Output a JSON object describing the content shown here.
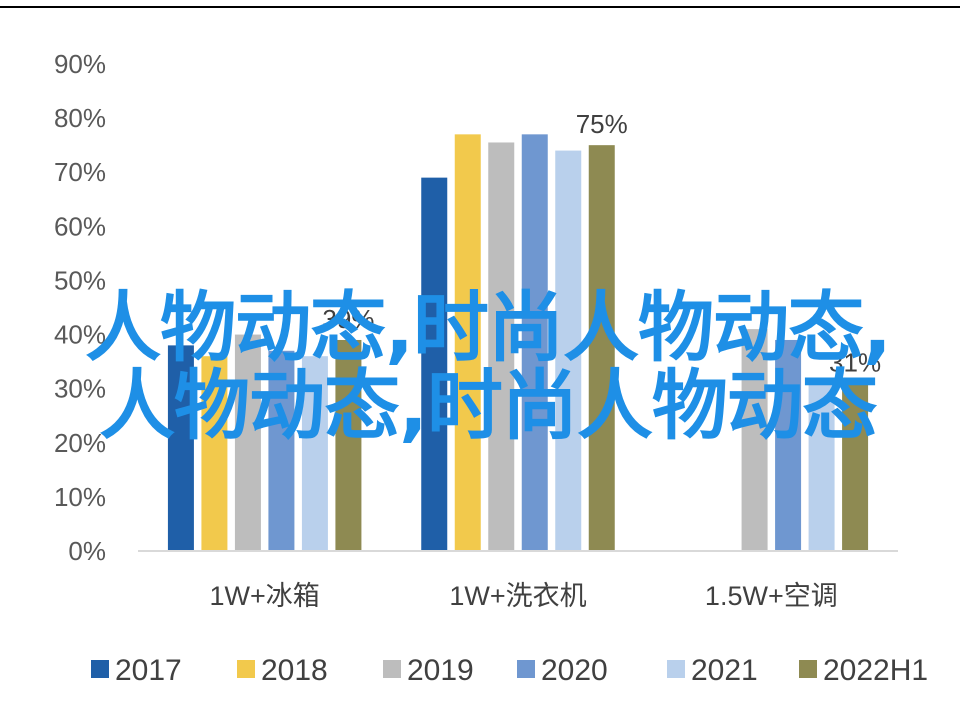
{
  "colors": {
    "top_rule": "#000000",
    "axis_line": "#d9d9d9",
    "watermark": "#1e8fe6"
  },
  "watermark": {
    "line1": "人物动态,时尚人物动态,",
    "line2": "人物动态,时尚人物动态"
  },
  "chart_data": {
    "type": "bar",
    "title": "",
    "xlabel": "",
    "ylabel": "",
    "ylim": [
      0,
      0.9
    ],
    "yticks": [
      "0%",
      "10%",
      "20%",
      "30%",
      "40%",
      "50%",
      "60%",
      "70%",
      "80%",
      "90%"
    ],
    "grid": false,
    "legend_position": "bottom",
    "categories": [
      "1W+冰箱",
      "1W+洗衣机",
      "1.5W+空调"
    ],
    "series": [
      {
        "name": "2017",
        "color": "#1f5fa8",
        "values": [
          0.38,
          0.69,
          null
        ]
      },
      {
        "name": "2018",
        "color": "#f2c94c",
        "values": [
          0.36,
          0.77,
          null
        ]
      },
      {
        "name": "2019",
        "color": "#bdbdbd",
        "values": [
          0.4,
          0.755,
          0.41
        ]
      },
      {
        "name": "2020",
        "color": "#6f97d0",
        "values": [
          0.37,
          0.77,
          0.39
        ]
      },
      {
        "name": "2021",
        "color": "#b9d0ec",
        "values": [
          0.36,
          0.74,
          0.32
        ]
      },
      {
        "name": "2022H1",
        "color": "#8e8a52",
        "values": [
          0.39,
          0.75,
          0.31
        ]
      }
    ],
    "annotations": [
      {
        "category": "1W+冰箱",
        "series": "2022H1",
        "text": "39%"
      },
      {
        "category": "1W+洗衣机",
        "series": "2022H1",
        "text": "75%"
      },
      {
        "category": "1.5W+空调",
        "series": "2022H1",
        "text": "31%"
      }
    ]
  }
}
